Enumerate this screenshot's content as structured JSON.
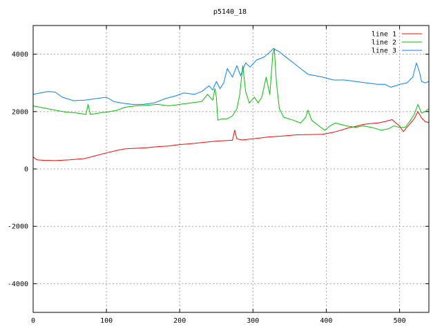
{
  "chart_data": {
    "type": "line",
    "title": "p5140_18",
    "xlim": [
      0,
      540
    ],
    "ylim": [
      -5000,
      5000
    ],
    "grid": true,
    "legend_position": "top-right",
    "x_ticks": [
      0,
      100,
      200,
      300,
      400,
      500
    ],
    "y_ticks": [
      -4000,
      -2000,
      0,
      2000,
      4000
    ],
    "x_tick_labels": [
      "0",
      "100",
      "200",
      "300",
      "400",
      "500"
    ],
    "y_tick_labels": [
      "-4000",
      "-2000",
      "0",
      "2000",
      "4000"
    ],
    "series": [
      {
        "name": "line 1",
        "color": "#ff0000",
        "points": [
          [
            0,
            420
          ],
          [
            5,
            320
          ],
          [
            15,
            300
          ],
          [
            30,
            290
          ],
          [
            50,
            320
          ],
          [
            70,
            360
          ],
          [
            85,
            460
          ],
          [
            100,
            560
          ],
          [
            115,
            650
          ],
          [
            125,
            700
          ],
          [
            140,
            720
          ],
          [
            155,
            740
          ],
          [
            170,
            780
          ],
          [
            185,
            800
          ],
          [
            200,
            850
          ],
          [
            215,
            880
          ],
          [
            230,
            920
          ],
          [
            245,
            960
          ],
          [
            255,
            980
          ],
          [
            265,
            990
          ],
          [
            272,
            1000
          ],
          [
            275,
            1350
          ],
          [
            278,
            1050
          ],
          [
            285,
            1010
          ],
          [
            300,
            1050
          ],
          [
            320,
            1110
          ],
          [
            340,
            1150
          ],
          [
            360,
            1190
          ],
          [
            380,
            1200
          ],
          [
            395,
            1210
          ],
          [
            410,
            1280
          ],
          [
            420,
            1350
          ],
          [
            430,
            1430
          ],
          [
            440,
            1480
          ],
          [
            450,
            1550
          ],
          [
            460,
            1580
          ],
          [
            470,
            1600
          ],
          [
            480,
            1650
          ],
          [
            490,
            1720
          ],
          [
            495,
            1600
          ],
          [
            500,
            1500
          ],
          [
            505,
            1300
          ],
          [
            510,
            1450
          ],
          [
            515,
            1600
          ],
          [
            520,
            1750
          ],
          [
            525,
            2000
          ],
          [
            530,
            1780
          ],
          [
            535,
            1650
          ],
          [
            540,
            1620
          ]
        ]
      },
      {
        "name": "line 2",
        "color": "#00c000",
        "points": [
          [
            0,
            2200
          ],
          [
            10,
            2150
          ],
          [
            20,
            2100
          ],
          [
            30,
            2050
          ],
          [
            45,
            1980
          ],
          [
            60,
            1950
          ],
          [
            72,
            1900
          ],
          [
            75,
            2250
          ],
          [
            78,
            1900
          ],
          [
            90,
            1950
          ],
          [
            105,
            2000
          ],
          [
            115,
            2050
          ],
          [
            125,
            2150
          ],
          [
            140,
            2200
          ],
          [
            155,
            2220
          ],
          [
            170,
            2250
          ],
          [
            185,
            2200
          ],
          [
            200,
            2250
          ],
          [
            215,
            2300
          ],
          [
            230,
            2350
          ],
          [
            238,
            2600
          ],
          [
            245,
            2400
          ],
          [
            248,
            2800
          ],
          [
            250,
            2500
          ],
          [
            252,
            1700
          ],
          [
            258,
            1750
          ],
          [
            265,
            1750
          ],
          [
            272,
            1850
          ],
          [
            278,
            2100
          ],
          [
            282,
            2600
          ],
          [
            286,
            3600
          ],
          [
            290,
            2700
          ],
          [
            295,
            2300
          ],
          [
            302,
            2500
          ],
          [
            307,
            2300
          ],
          [
            312,
            2500
          ],
          [
            318,
            3200
          ],
          [
            323,
            2600
          ],
          [
            327,
            4000
          ],
          [
            329,
            4200
          ],
          [
            332,
            3000
          ],
          [
            336,
            2100
          ],
          [
            342,
            1800
          ],
          [
            355,
            1700
          ],
          [
            365,
            1600
          ],
          [
            372,
            1800
          ],
          [
            375,
            2050
          ],
          [
            380,
            1700
          ],
          [
            390,
            1500
          ],
          [
            398,
            1350
          ],
          [
            405,
            1500
          ],
          [
            412,
            1600
          ],
          [
            420,
            1550
          ],
          [
            428,
            1500
          ],
          [
            440,
            1450
          ],
          [
            450,
            1500
          ],
          [
            462,
            1450
          ],
          [
            475,
            1350
          ],
          [
            485,
            1400
          ],
          [
            492,
            1500
          ],
          [
            500,
            1450
          ],
          [
            508,
            1450
          ],
          [
            515,
            1700
          ],
          [
            520,
            1900
          ],
          [
            525,
            2250
          ],
          [
            530,
            1950
          ],
          [
            535,
            2000
          ],
          [
            540,
            2100
          ]
        ]
      },
      {
        "name": "line 3",
        "color": "#0080ff",
        "points": [
          [
            0,
            2600
          ],
          [
            10,
            2650
          ],
          [
            20,
            2700
          ],
          [
            30,
            2680
          ],
          [
            40,
            2500
          ],
          [
            55,
            2380
          ],
          [
            70,
            2400
          ],
          [
            85,
            2450
          ],
          [
            100,
            2500
          ],
          [
            110,
            2350
          ],
          [
            120,
            2300
          ],
          [
            135,
            2250
          ],
          [
            150,
            2250
          ],
          [
            165,
            2300
          ],
          [
            180,
            2450
          ],
          [
            195,
            2550
          ],
          [
            205,
            2650
          ],
          [
            220,
            2600
          ],
          [
            230,
            2700
          ],
          [
            240,
            2900
          ],
          [
            245,
            2750
          ],
          [
            250,
            3050
          ],
          [
            255,
            2800
          ],
          [
            260,
            3000
          ],
          [
            265,
            3500
          ],
          [
            272,
            3200
          ],
          [
            278,
            3600
          ],
          [
            283,
            3250
          ],
          [
            290,
            3700
          ],
          [
            296,
            3550
          ],
          [
            305,
            3800
          ],
          [
            315,
            3900
          ],
          [
            322,
            4050
          ],
          [
            328,
            4200
          ],
          [
            335,
            4100
          ],
          [
            345,
            3900
          ],
          [
            355,
            3700
          ],
          [
            365,
            3500
          ],
          [
            375,
            3300
          ],
          [
            385,
            3250
          ],
          [
            395,
            3200
          ],
          [
            410,
            3100
          ],
          [
            425,
            3100
          ],
          [
            440,
            3050
          ],
          [
            455,
            3000
          ],
          [
            470,
            2950
          ],
          [
            480,
            2950
          ],
          [
            488,
            2850
          ],
          [
            495,
            2900
          ],
          [
            500,
            2950
          ],
          [
            510,
            3000
          ],
          [
            518,
            3200
          ],
          [
            523,
            3700
          ],
          [
            527,
            3400
          ],
          [
            530,
            3050
          ],
          [
            535,
            3000
          ],
          [
            540,
            3050
          ]
        ]
      }
    ]
  }
}
